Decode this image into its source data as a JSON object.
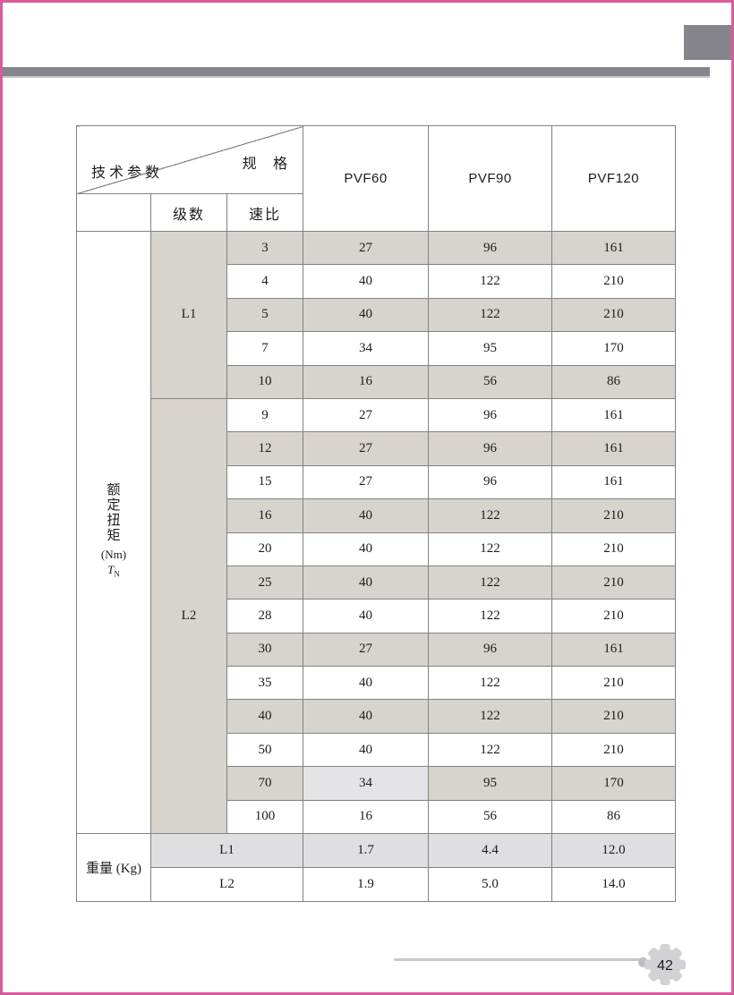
{
  "page": {
    "number": "42"
  },
  "table": {
    "corner_top_right": "规 格",
    "corner_bottom_left": "技术参数",
    "col_headers": [
      "PVF60",
      "PVF90",
      "PVF120"
    ],
    "sub_header_stage": "级数",
    "sub_header_ratio": "速比",
    "torque_label": {
      "chars": "额定扭矩",
      "unit": "(Nm)",
      "symbol": "T",
      "symbol_sub": "N"
    },
    "groups": [
      {
        "stage": "L1",
        "rows": [
          [
            "3",
            "27",
            "96",
            "161"
          ],
          [
            "4",
            "40",
            "122",
            "210"
          ],
          [
            "5",
            "40",
            "122",
            "210"
          ],
          [
            "7",
            "34",
            "95",
            "170"
          ],
          [
            "10",
            "16",
            "56",
            "86"
          ]
        ]
      },
      {
        "stage": "L2",
        "rows": [
          [
            "9",
            "27",
            "96",
            "161"
          ],
          [
            "12",
            "27",
            "96",
            "161"
          ],
          [
            "15",
            "27",
            "96",
            "161"
          ],
          [
            "16",
            "40",
            "122",
            "210"
          ],
          [
            "20",
            "40",
            "122",
            "210"
          ],
          [
            "25",
            "40",
            "122",
            "210"
          ],
          [
            "28",
            "40",
            "122",
            "210"
          ],
          [
            "30",
            "27",
            "96",
            "161"
          ],
          [
            "35",
            "40",
            "122",
            "210"
          ],
          [
            "40",
            "40",
            "122",
            "210"
          ],
          [
            "50",
            "40",
            "122",
            "210"
          ],
          [
            "70",
            "34",
            "95",
            "170"
          ],
          [
            "100",
            "16",
            "56",
            "86"
          ]
        ]
      }
    ],
    "highlight": {
      "ratio": "70",
      "value_index": 0
    },
    "weight_label": "重量 (Kg)",
    "weight_rows": [
      [
        "L1",
        "1.7",
        "4.4",
        "12.0"
      ],
      [
        "L2",
        "1.9",
        "5.0",
        "14.0"
      ]
    ]
  },
  "colors": {
    "accent_pink": "#db5a9c",
    "decor_gray": "#87858c",
    "grid": "#828282",
    "stripe": "#d7d3cd",
    "stripe_light": "#e4e3e5",
    "weight_stripe": "#dfdee0"
  }
}
